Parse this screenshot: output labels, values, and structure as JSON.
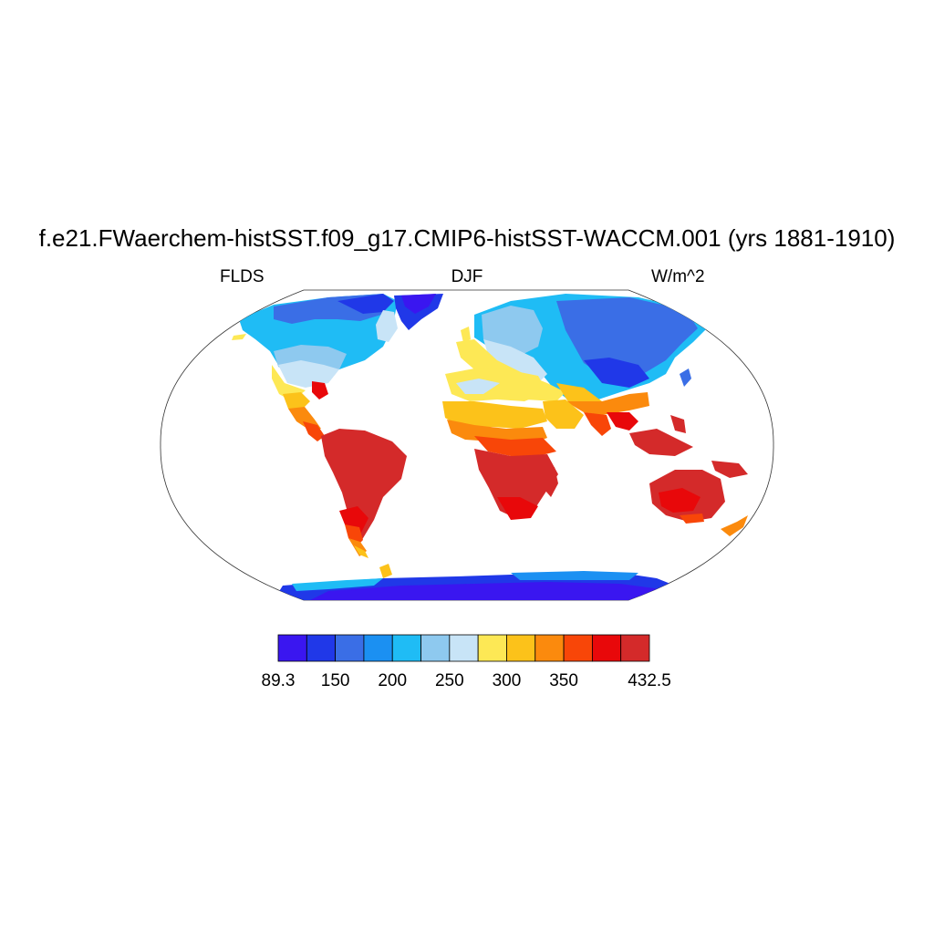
{
  "map": {
    "title": "f.e21.FWaerchem-histSST.f09_g17.CMIP6-histSST-WACCM.001 (yrs 1881-1910)",
    "variable": "FLDS",
    "season": "DJF",
    "units": "W/m^2",
    "projection": "Robinson",
    "ocean_color": "#ffffff",
    "coastlines": true
  },
  "colorbar": {
    "colors": [
      "#3a16f0",
      "#2038e8",
      "#3a6ee6",
      "#1b90f2",
      "#1fbcf5",
      "#8ec9ef",
      "#c8e4f7",
      "#fde855",
      "#fcc21a",
      "#fb8a0d",
      "#f84608",
      "#e8080a",
      "#d42a2a"
    ],
    "tick_labels": [
      "89.3",
      "150",
      "200",
      "250",
      "300",
      "350",
      "432.5"
    ]
  }
}
